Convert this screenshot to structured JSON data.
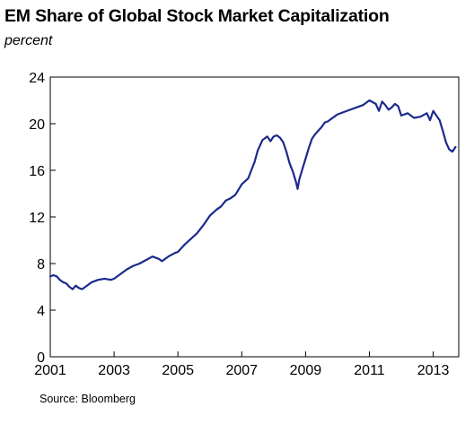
{
  "chart_data": {
    "type": "line",
    "title": "EM Share of Global Stock Market Capitalization",
    "subtitle": "percent",
    "source": "Source: Bloomberg",
    "xlabel": "",
    "ylabel": "",
    "xlim": [
      2001,
      2013.8
    ],
    "ylim": [
      0,
      24
    ],
    "x_ticks": [
      2001,
      2003,
      2005,
      2007,
      2009,
      2011,
      2013
    ],
    "y_ticks": [
      0,
      4,
      8,
      12,
      16,
      20,
      24
    ],
    "grid": false,
    "legend": "none",
    "series": [
      {
        "color": "#1c2a8c",
        "x": [
          2001.0,
          2001.1,
          2001.2,
          2001.3,
          2001.4,
          2001.5,
          2001.6,
          2001.7,
          2001.8,
          2001.9,
          2002.0,
          2002.1,
          2002.2,
          2002.3,
          2002.5,
          2002.7,
          2002.9,
          2003.0,
          2003.2,
          2003.4,
          2003.6,
          2003.8,
          2004.0,
          2004.2,
          2004.4,
          2004.5,
          2004.7,
          2004.9,
          2005.0,
          2005.2,
          2005.4,
          2005.6,
          2005.8,
          2006.0,
          2006.2,
          2006.35,
          2006.5,
          2006.65,
          2006.8,
          2007.0,
          2007.2,
          2007.4,
          2007.5,
          2007.65,
          2007.8,
          2007.9,
          2008.0,
          2008.1,
          2008.2,
          2008.3,
          2008.4,
          2008.5,
          2008.6,
          2008.7,
          2008.75,
          2008.8,
          2008.9,
          2009.0,
          2009.1,
          2009.2,
          2009.3,
          2009.4,
          2009.5,
          2009.6,
          2009.7,
          2009.8,
          2009.9,
          2010.0,
          2010.2,
          2010.4,
          2010.6,
          2010.8,
          2010.9,
          2011.0,
          2011.2,
          2011.3,
          2011.4,
          2011.5,
          2011.6,
          2011.7,
          2011.8,
          2011.9,
          2012.0,
          2012.2,
          2012.4,
          2012.6,
          2012.8,
          2012.9,
          2013.0,
          2013.1,
          2013.2,
          2013.3,
          2013.4,
          2013.5,
          2013.6,
          2013.7
        ],
        "y": [
          6.9,
          7.0,
          6.9,
          6.6,
          6.4,
          6.3,
          6.0,
          5.8,
          6.1,
          5.9,
          5.8,
          6.0,
          6.2,
          6.4,
          6.6,
          6.7,
          6.6,
          6.7,
          7.1,
          7.5,
          7.8,
          8.0,
          8.3,
          8.6,
          8.4,
          8.2,
          8.6,
          8.9,
          9.0,
          9.6,
          10.1,
          10.6,
          11.3,
          12.1,
          12.6,
          12.9,
          13.4,
          13.6,
          13.9,
          14.8,
          15.3,
          16.7,
          17.7,
          18.6,
          18.9,
          18.5,
          18.9,
          19.0,
          18.8,
          18.4,
          17.6,
          16.6,
          15.9,
          15.0,
          14.4,
          15.2,
          16.1,
          17.0,
          17.9,
          18.7,
          19.1,
          19.4,
          19.7,
          20.1,
          20.2,
          20.4,
          20.6,
          20.8,
          21.0,
          21.2,
          21.4,
          21.6,
          21.8,
          22.0,
          21.7,
          21.1,
          21.9,
          21.6,
          21.2,
          21.4,
          21.7,
          21.5,
          20.7,
          20.9,
          20.5,
          20.6,
          20.9,
          20.3,
          21.1,
          20.7,
          20.3,
          19.4,
          18.4,
          17.8,
          17.6,
          18.0
        ]
      }
    ]
  }
}
